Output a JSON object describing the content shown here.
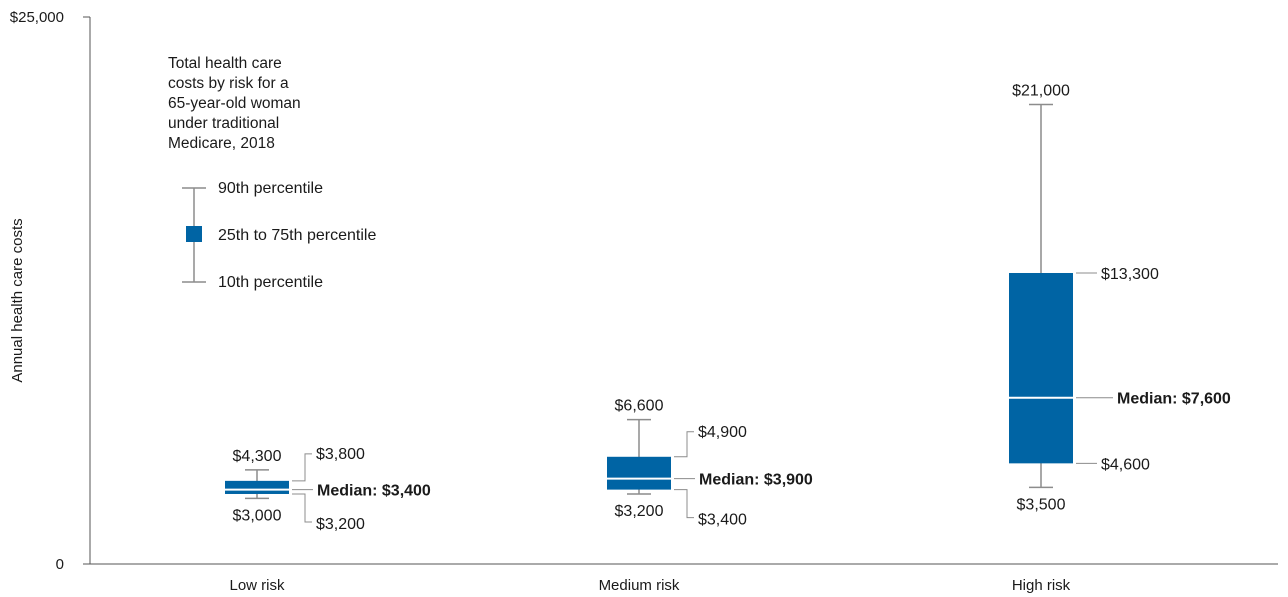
{
  "chart_data": {
    "type": "box",
    "ylabel": "Annual health care costs",
    "ylim": [
      0,
      25000
    ],
    "yticks": [
      {
        "value": 0,
        "label": "0"
      },
      {
        "value": 25000,
        "label": "$25,000"
      }
    ],
    "grid": false,
    "legend": {
      "position": "top-left",
      "title": "Total health care costs by risk for a 65-year-old woman under traditional Medicare, 2018",
      "title_lines": [
        "Total health care",
        "costs by risk for a",
        "65-year-old woman",
        "under traditional",
        "Medicare, 2018"
      ],
      "items": [
        {
          "name": "90th percentile"
        },
        {
          "name": "25th to 75th percentile"
        },
        {
          "name": "10th percentile"
        }
      ]
    },
    "box_color": "#0064a4",
    "whisker_color": "#8c8c8c",
    "categories": [
      "Low risk",
      "Medium risk",
      "High risk"
    ],
    "boxes": [
      {
        "category": "Low risk",
        "p10": 3000,
        "p25": 3200,
        "median": 3400,
        "p75": 3800,
        "p90": 4300,
        "p10_label": "$3,000",
        "p25_label": "$3,200",
        "median_label": "Median: $3,400",
        "p75_label": "$3,800",
        "p90_label": "$4,300"
      },
      {
        "category": "Medium risk",
        "p10": 3200,
        "p25": 3400,
        "median": 3900,
        "p75": 4900,
        "p90": 6600,
        "p10_label": "$3,200",
        "p25_label": "$3,400",
        "median_label": "Median: $3,900",
        "p75_label": "$4,900",
        "p90_label": "$6,600"
      },
      {
        "category": "High risk",
        "p10": 3500,
        "p25": 4600,
        "median": 7600,
        "p75": 13300,
        "p90": 21000,
        "p10_label": "$3,500",
        "p25_label": "$4,600",
        "median_label": "Median: $7,600",
        "p75_label": "$13,300",
        "p90_label": "$21,000"
      }
    ]
  }
}
